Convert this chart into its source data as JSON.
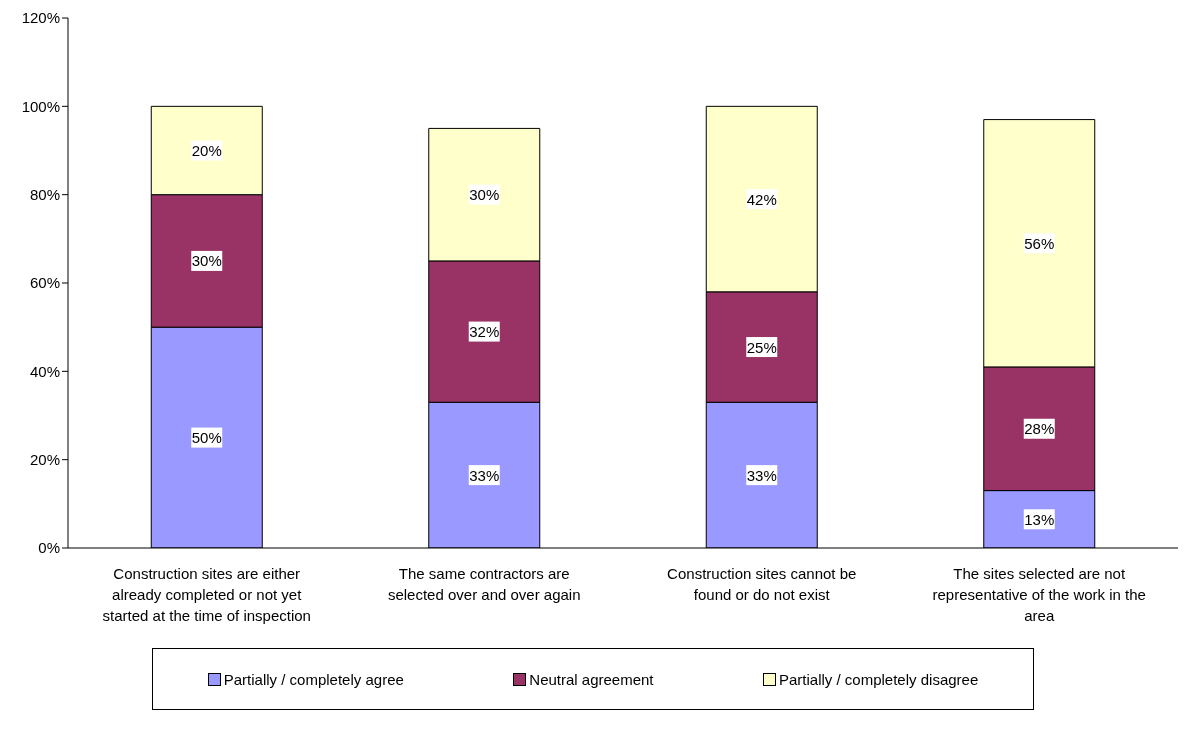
{
  "chart_data": {
    "type": "bar",
    "stacked": true,
    "categories": [
      "Construction sites are either already completed or not yet started at the time of inspection",
      "The same contractors are selected over and over again",
      "Construction sites cannot be found or do not exist",
      "The sites selected are not representative of the work in the area"
    ],
    "series": [
      {
        "name": "Partially / completely agree",
        "color": "#9999ff",
        "values": [
          50,
          33,
          33,
          13
        ],
        "value_labels": [
          "50%",
          "33%",
          "33%",
          "13%"
        ]
      },
      {
        "name": "Neutral agreement",
        "color": "#993366",
        "values": [
          30,
          32,
          25,
          28
        ],
        "value_labels": [
          "30%",
          "32%",
          "25%",
          "28%"
        ]
      },
      {
        "name": "Partially / completely disagree",
        "color": "#ffffcc",
        "values": [
          20,
          30,
          42,
          56
        ],
        "value_labels": [
          "20%",
          "30%",
          "42%",
          "56%"
        ]
      }
    ],
    "ylim": [
      0,
      120
    ],
    "yticks": [
      {
        "value": 0,
        "label": "0%"
      },
      {
        "value": 20,
        "label": "20%"
      },
      {
        "value": 40,
        "label": "40%"
      },
      {
        "value": 60,
        "label": "60%"
      },
      {
        "value": 80,
        "label": "80%"
      },
      {
        "value": 100,
        "label": "100%"
      },
      {
        "value": 120,
        "label": "120%"
      }
    ],
    "grid": false,
    "legend": "bottom"
  }
}
